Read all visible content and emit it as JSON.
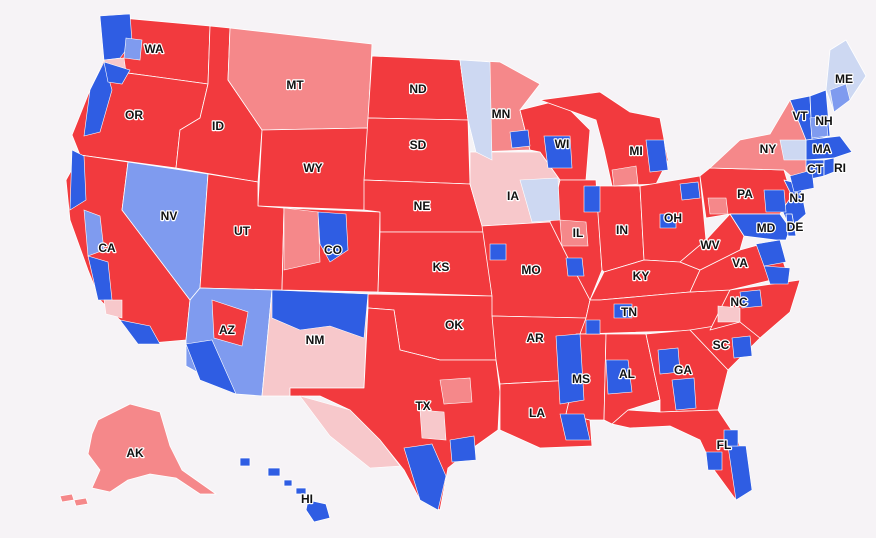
{
  "map": {
    "colors": {
      "background": "#f6f3f6",
      "solid_rep": "#f23a3e",
      "likely_rep": "#f5888a",
      "lean_rep": "#f7c8cb",
      "lean_dem": "#cdd8f2",
      "likely_dem": "#7f9bef",
      "solid_dem": "#2f5de3",
      "border": "#ffffff"
    },
    "labels": {
      "WA": "WA",
      "OR": "OR",
      "CA": "CA",
      "NV": "NV",
      "ID": "ID",
      "MT": "MT",
      "WY": "WY",
      "UT": "UT",
      "AZ": "AZ",
      "CO": "CO",
      "NM": "NM",
      "ND": "ND",
      "SD": "SD",
      "NE": "NE",
      "KS": "KS",
      "OK": "OK",
      "TX": "TX",
      "MN": "MN",
      "IA": "IA",
      "MO": "MO",
      "AR": "AR",
      "LA": "LA",
      "WI": "WI",
      "IL": "IL",
      "MS": "MS",
      "MI": "MI",
      "IN": "IN",
      "KY": "KY",
      "TN": "TN",
      "AL": "AL",
      "OH": "OH",
      "WV": "WV",
      "VA": "VA",
      "NC": "NC",
      "SC": "SC",
      "GA": "GA",
      "FL": "FL",
      "PA": "PA",
      "NY": "NY",
      "VT": "VT",
      "NH": "NH",
      "ME": "ME",
      "MA": "MA",
      "CT": "CT",
      "RI": "RI",
      "NJ": "NJ",
      "DE": "DE",
      "MD": "MD",
      "AK": "AK",
      "HI": "HI"
    }
  }
}
